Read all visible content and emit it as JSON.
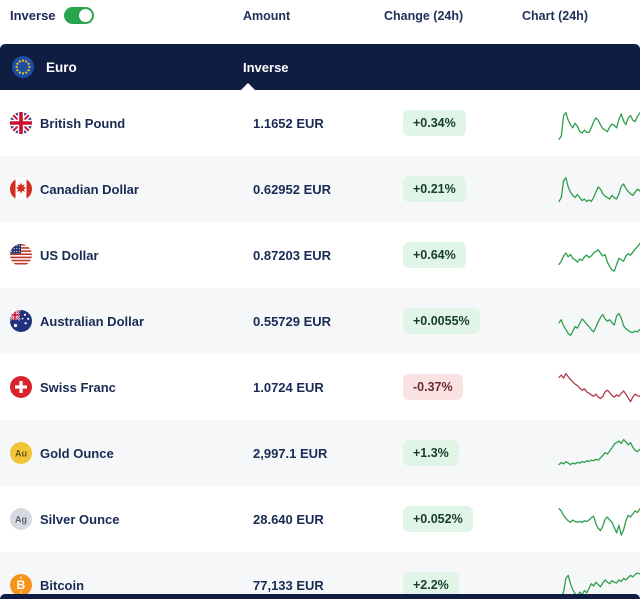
{
  "toolbar": {
    "inverse_label": "Inverse",
    "inverse_on": true
  },
  "columns": {
    "amount": "Amount",
    "change": "Change (24h)",
    "chart": "Chart (24h)"
  },
  "section_header": {
    "currency": "Euro",
    "icon": "eur",
    "mode_label": "Inverse"
  },
  "colors": {
    "navy": "#101d42",
    "toggle_green": "#2aa44e",
    "spark_up": "#2f9e4c",
    "spark_down": "#b23a48",
    "badge_up_bg": "#e1f4e8",
    "badge_up_text": "#173d2c",
    "badge_down_bg": "#fbe2e2",
    "badge_down_text": "#702832"
  },
  "rows": [
    {
      "icon": "gbp",
      "name": "British Pound",
      "amount": "1.1652 EUR",
      "change": "+0.34%",
      "trend": "up",
      "spark": [
        10,
        18,
        72,
        80,
        60,
        48,
        40,
        52,
        44,
        30,
        26,
        34,
        28,
        28,
        40,
        56,
        66,
        60,
        48,
        38,
        34,
        30,
        42,
        50,
        46,
        40,
        62,
        76,
        58,
        48,
        66,
        72,
        60,
        56,
        70,
        78,
        88
      ]
    },
    {
      "icon": "cad",
      "name": "Canadian Dollar",
      "amount": "0.62952 EUR",
      "change": "+0.21%",
      "trend": "up",
      "spark": [
        20,
        30,
        75,
        82,
        58,
        44,
        36,
        30,
        38,
        30,
        22,
        26,
        20,
        24,
        20,
        30,
        44,
        58,
        52,
        40,
        34,
        30,
        26,
        36,
        30,
        26,
        40,
        60,
        66,
        54,
        46,
        40,
        36,
        44,
        52,
        48,
        56
      ]
    },
    {
      "icon": "usd",
      "name": "US Dollar",
      "amount": "0.87203 EUR",
      "change": "+0.64%",
      "trend": "up",
      "spark": [
        28,
        36,
        50,
        58,
        48,
        54,
        44,
        40,
        34,
        42,
        38,
        48,
        52,
        46,
        50,
        58,
        62,
        66,
        58,
        50,
        54,
        34,
        22,
        14,
        10,
        28,
        44,
        40,
        36,
        50,
        56,
        52,
        60,
        68,
        74,
        82,
        90
      ]
    },
    {
      "icon": "aud",
      "name": "Australian Dollar",
      "amount": "0.55729 EUR",
      "change": "+0.0055%",
      "trend": "up",
      "spark": [
        48,
        56,
        40,
        30,
        20,
        14,
        26,
        38,
        34,
        46,
        58,
        52,
        44,
        38,
        30,
        24,
        36,
        50,
        62,
        70,
        58,
        52,
        56,
        48,
        42,
        66,
        72,
        60,
        40,
        32,
        28,
        24,
        22,
        26,
        24,
        30,
        32
      ]
    },
    {
      "icon": "chf",
      "name": "Swiss Franc",
      "amount": "1.0724 EUR",
      "change": "-0.37%",
      "trend": "down",
      "spark": [
        78,
        84,
        76,
        88,
        80,
        72,
        66,
        60,
        56,
        50,
        44,
        48,
        40,
        36,
        32,
        28,
        34,
        26,
        22,
        28,
        40,
        44,
        38,
        30,
        26,
        32,
        28,
        36,
        42,
        34,
        24,
        14,
        26,
        34,
        30,
        28,
        26
      ]
    },
    {
      "icon": "xau",
      "name": "Gold Ounce",
      "amount": "2,997.1 EUR",
      "change": "+1.3%",
      "trend": "up",
      "spark": [
        22,
        28,
        24,
        30,
        26,
        22,
        26,
        24,
        28,
        26,
        30,
        28,
        32,
        30,
        34,
        32,
        36,
        34,
        40,
        46,
        54,
        50,
        58,
        66,
        76,
        80,
        84,
        78,
        88,
        82,
        74,
        80,
        68,
        60,
        56,
        62,
        58
      ]
    },
    {
      "icon": "xag",
      "name": "Silver Ounce",
      "amount": "28.640 EUR",
      "change": "+0.052%",
      "trend": "up",
      "spark": [
        80,
        74,
        62,
        54,
        48,
        44,
        50,
        46,
        44,
        46,
        44,
        48,
        46,
        50,
        56,
        60,
        40,
        28,
        22,
        34,
        52,
        58,
        50,
        44,
        30,
        16,
        36,
        10,
        24,
        48,
        62,
        58,
        66,
        74,
        70,
        78,
        88
      ]
    },
    {
      "icon": "btc",
      "name": "Bitcoin",
      "amount": "77,133 EUR",
      "change": "+2.2%",
      "trend": "up",
      "spark": [
        14,
        22,
        34,
        70,
        78,
        56,
        40,
        30,
        24,
        34,
        28,
        38,
        32,
        44,
        56,
        50,
        60,
        54,
        48,
        58,
        66,
        60,
        56,
        64,
        60,
        58,
        66,
        62,
        70,
        66,
        72,
        78,
        74,
        80,
        84,
        82,
        88
      ]
    }
  ]
}
